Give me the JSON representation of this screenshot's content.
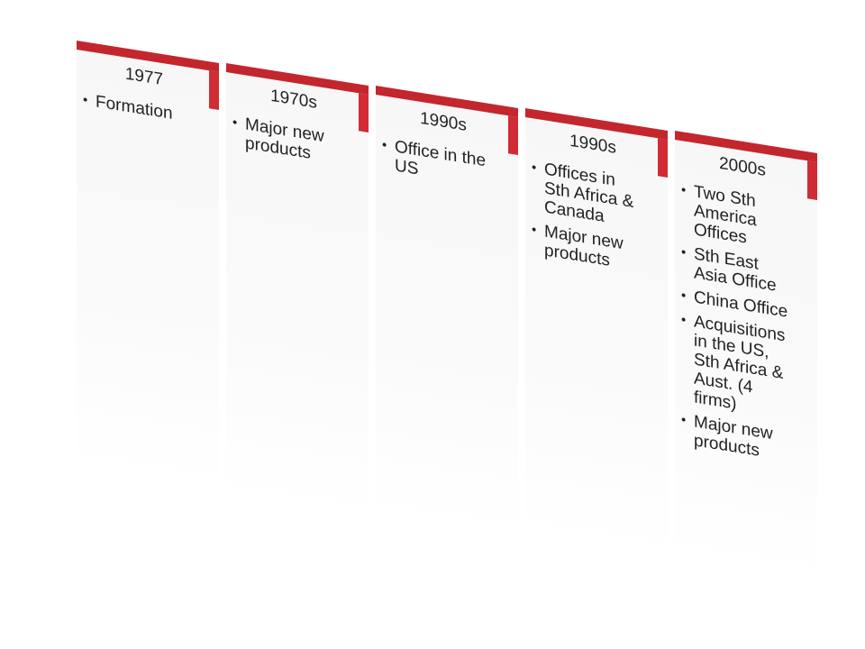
{
  "timeline": [
    {
      "year": "1977",
      "items": [
        "Formation"
      ]
    },
    {
      "year": "1970s",
      "items": [
        "Major new\nproducts"
      ]
    },
    {
      "year": "1990s",
      "items": [
        "Office in the\nUS"
      ]
    },
    {
      "year": "1990s",
      "items": [
        "Offices in\nSth Africa &\nCanada",
        "Major new\nproducts"
      ]
    },
    {
      "year": "2000s",
      "items": [
        " Two Sth\nAmerica\nOffices",
        "Sth East\nAsia Office",
        "China Office",
        "Acquisitions\nin the US,\nSth Africa &\nAust. (4\nfirms)",
        "Major new\nproducts"
      ]
    }
  ],
  "colors": {
    "bar": "#c4262e",
    "bar_side": "#d12c35",
    "panel": "#f7f7f7"
  }
}
